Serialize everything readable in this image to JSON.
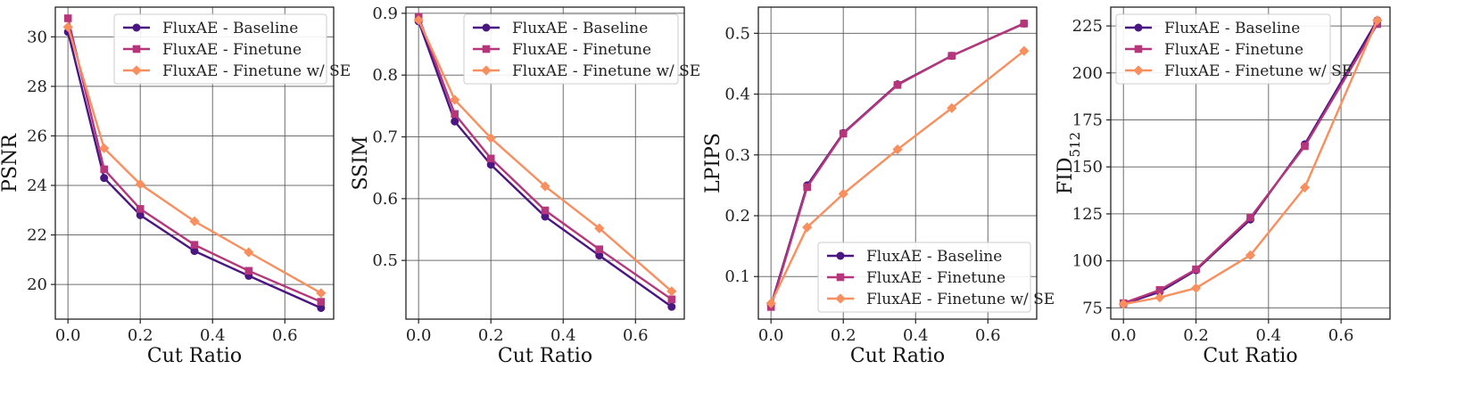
{
  "colors": {
    "baseline": "#4a1682",
    "finetune": "#b5367a",
    "finetune_se": "#f98e5e",
    "grid": "#555555"
  },
  "chart_data": [
    {
      "type": "line",
      "xlabel": "Cut Ratio",
      "ylabel": "PSNR",
      "x": [
        0.0,
        0.1,
        0.2,
        0.35,
        0.5,
        0.7
      ],
      "xlim": [
        -0.035,
        0.735
      ],
      "ylim": [
        18.6,
        31.2
      ],
      "xticks": [
        0.0,
        0.2,
        0.4,
        0.6
      ],
      "xtick_labels": [
        "0.0",
        "0.2",
        "0.4",
        "0.6"
      ],
      "yticks": [
        20,
        22,
        24,
        26,
        28,
        30
      ],
      "ytick_labels": [
        "20",
        "22",
        "24",
        "26",
        "28",
        "30"
      ],
      "legend_position": "top-right",
      "grid": true,
      "series": [
        {
          "name": "FluxAE - Baseline",
          "marker": "circle",
          "values": [
            30.2,
            24.3,
            22.8,
            21.35,
            20.35,
            19.05
          ]
        },
        {
          "name": "FluxAE - Finetune",
          "marker": "square",
          "values": [
            30.75,
            24.65,
            23.05,
            21.6,
            20.55,
            19.3
          ]
        },
        {
          "name": "FluxAE - Finetune w/ SE",
          "marker": "diamond",
          "values": [
            30.4,
            25.5,
            24.05,
            22.55,
            21.3,
            19.65
          ]
        }
      ]
    },
    {
      "type": "line",
      "xlabel": "Cut Ratio",
      "ylabel": "SSIM",
      "x": [
        0.0,
        0.1,
        0.2,
        0.35,
        0.5,
        0.7
      ],
      "xlim": [
        -0.035,
        0.735
      ],
      "ylim": [
        0.405,
        0.91
      ],
      "xticks": [
        0.0,
        0.2,
        0.4,
        0.6
      ],
      "xtick_labels": [
        "0.0",
        "0.2",
        "0.4",
        "0.6"
      ],
      "yticks": [
        0.5,
        0.6,
        0.7,
        0.8,
        0.9
      ],
      "ytick_labels": [
        "0.5",
        "0.6",
        "0.7",
        "0.8",
        "0.9"
      ],
      "legend_position": "top-right",
      "grid": true,
      "series": [
        {
          "name": "FluxAE - Baseline",
          "marker": "circle",
          "values": [
            0.887,
            0.725,
            0.655,
            0.571,
            0.508,
            0.425
          ]
        },
        {
          "name": "FluxAE - Finetune",
          "marker": "square",
          "values": [
            0.894,
            0.737,
            0.665,
            0.581,
            0.518,
            0.437
          ]
        },
        {
          "name": "FluxAE - Finetune w/ SE",
          "marker": "diamond",
          "values": [
            0.889,
            0.76,
            0.698,
            0.62,
            0.552,
            0.45
          ]
        }
      ]
    },
    {
      "type": "line",
      "xlabel": "Cut Ratio",
      "ylabel": "LPIPS",
      "x": [
        0.0,
        0.1,
        0.2,
        0.35,
        0.5,
        0.7
      ],
      "xlim": [
        -0.035,
        0.735
      ],
      "ylim": [
        0.03,
        0.543
      ],
      "xticks": [
        0.0,
        0.2,
        0.4,
        0.6
      ],
      "xtick_labels": [
        "0.0",
        "0.2",
        "0.4",
        "0.6"
      ],
      "yticks": [
        0.1,
        0.2,
        0.3,
        0.4,
        0.5
      ],
      "ytick_labels": [
        "0.1",
        "0.2",
        "0.3",
        "0.4",
        "0.5"
      ],
      "legend_position": "bottom-right",
      "grid": true,
      "series": [
        {
          "name": "FluxAE - Baseline",
          "marker": "circle",
          "values": [
            0.053,
            0.25,
            0.336,
            0.416,
            0.463,
            0.516
          ]
        },
        {
          "name": "FluxAE - Finetune",
          "marker": "square",
          "values": [
            0.05,
            0.247,
            0.335,
            0.415,
            0.463,
            0.516
          ]
        },
        {
          "name": "FluxAE - Finetune w/ SE",
          "marker": "diamond",
          "values": [
            0.056,
            0.181,
            0.236,
            0.309,
            0.377,
            0.471
          ]
        }
      ]
    },
    {
      "type": "line",
      "xlabel": "Cut Ratio",
      "ylabel": "FID",
      "ylabel_subscript": "512",
      "x": [
        0.0,
        0.1,
        0.2,
        0.35,
        0.5,
        0.7
      ],
      "xlim": [
        -0.035,
        0.735
      ],
      "ylim": [
        69.0,
        235.0
      ],
      "xticks": [
        0.0,
        0.2,
        0.4,
        0.6
      ],
      "xtick_labels": [
        "0.0",
        "0.2",
        "0.4",
        "0.6"
      ],
      "yticks": [
        75,
        100,
        125,
        150,
        175,
        200,
        225
      ],
      "ytick_labels": [
        "75",
        "100",
        "125",
        "150",
        "175",
        "200",
        "225"
      ],
      "legend_position": "top-left",
      "grid": true,
      "series": [
        {
          "name": "FluxAE - Baseline",
          "marker": "circle",
          "values": [
            77.0,
            83.5,
            95.0,
            122.0,
            162.0,
            228.0
          ]
        },
        {
          "name": "FluxAE - Finetune",
          "marker": "square",
          "values": [
            77.5,
            84.5,
            95.5,
            123.0,
            161.0,
            226.0
          ]
        },
        {
          "name": "FluxAE - Finetune w/ SE",
          "marker": "diamond",
          "values": [
            77.0,
            80.5,
            85.5,
            103.0,
            139.0,
            228.0
          ]
        }
      ]
    }
  ]
}
